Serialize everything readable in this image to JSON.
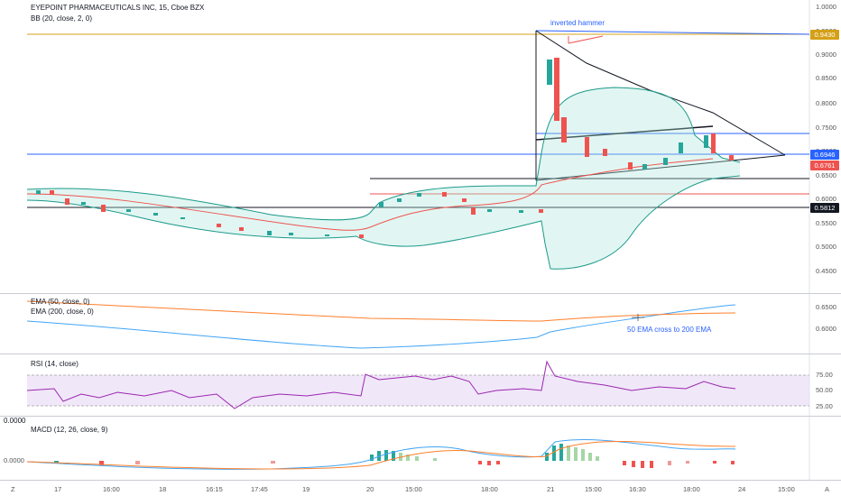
{
  "main": {
    "symbol_title": "EYEPOINT PHARMACEUTICALS INC, 15, Cboe BZX",
    "indicator": "BB (20, close, 2, 0)",
    "annotation": "inverted hammer",
    "price_axis": [
      "1.0000",
      "0.9500",
      "0.9000",
      "0.8500",
      "0.8000",
      "0.7500",
      "0.7000",
      "0.6500",
      "0.6000",
      "0.5500",
      "0.5000",
      "0.4500"
    ],
    "tags": {
      "top": "0.9430",
      "blue": "0.6946",
      "red": "0.6761",
      "black": "0.5812"
    },
    "colors": {
      "gold": "#d4a017",
      "blue": "#2962ff",
      "red": "#ef5350",
      "black": "#131722",
      "teal": "#26a69a",
      "band": "#1b9a8a"
    }
  },
  "ema": {
    "label1": "EMA (50, close, 0)",
    "label2": "EMA (200, close, 0)",
    "annotation": "50 EMA cross to 200 EMA",
    "axis": [
      "0.6500",
      "0.6000"
    ]
  },
  "rsi": {
    "label": "RSI (14, close)",
    "axis": [
      "75.00",
      "50.00",
      "25.00"
    ]
  },
  "macd": {
    "label": "MACD (12, 26, close, 9)",
    "axis": [
      "0.0000"
    ],
    "top_value": "0.0000"
  },
  "time_axis": [
    "17",
    "16:00",
    "18",
    "16:15",
    "17:45",
    "19",
    "20",
    "15:00",
    "18:00",
    "21",
    "15:00",
    "16:30",
    "18:00",
    "24",
    "15:00"
  ],
  "corner_left": "Z",
  "corner_right": "A"
}
